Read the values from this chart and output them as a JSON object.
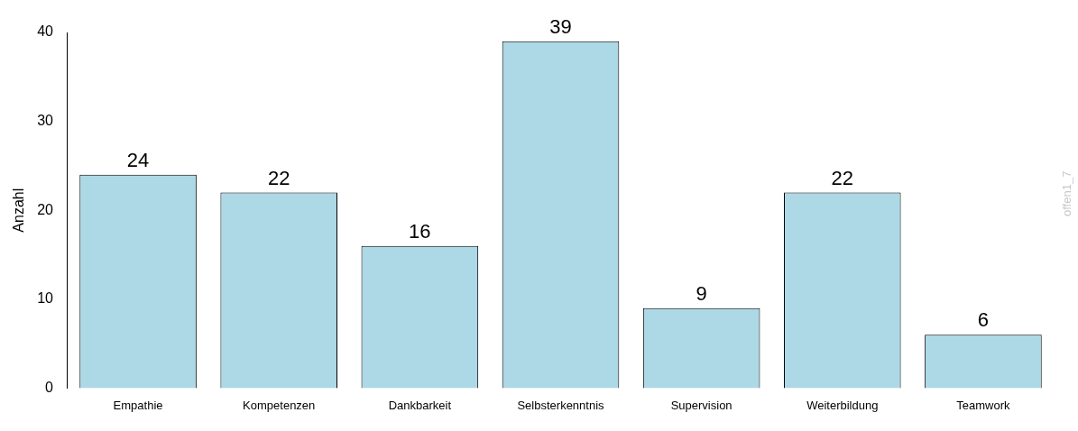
{
  "chart_data": {
    "type": "bar",
    "ylabel": "Anzahl",
    "categories": [
      "Empathie",
      "Kompetenzen",
      "Dankbarkeit",
      "Selbsterkenntnis",
      "Supervision",
      "Weiterbildung",
      "Teamwork"
    ],
    "values": [
      24,
      22,
      16,
      39,
      9,
      22,
      6
    ],
    "color": "#add8e6",
    "ylim": [
      0,
      40
    ],
    "yticks": [
      0,
      10,
      20,
      30,
      40
    ],
    "grid": false,
    "legend": false,
    "data_labels": true,
    "annotations": [
      "offen1_7"
    ]
  }
}
